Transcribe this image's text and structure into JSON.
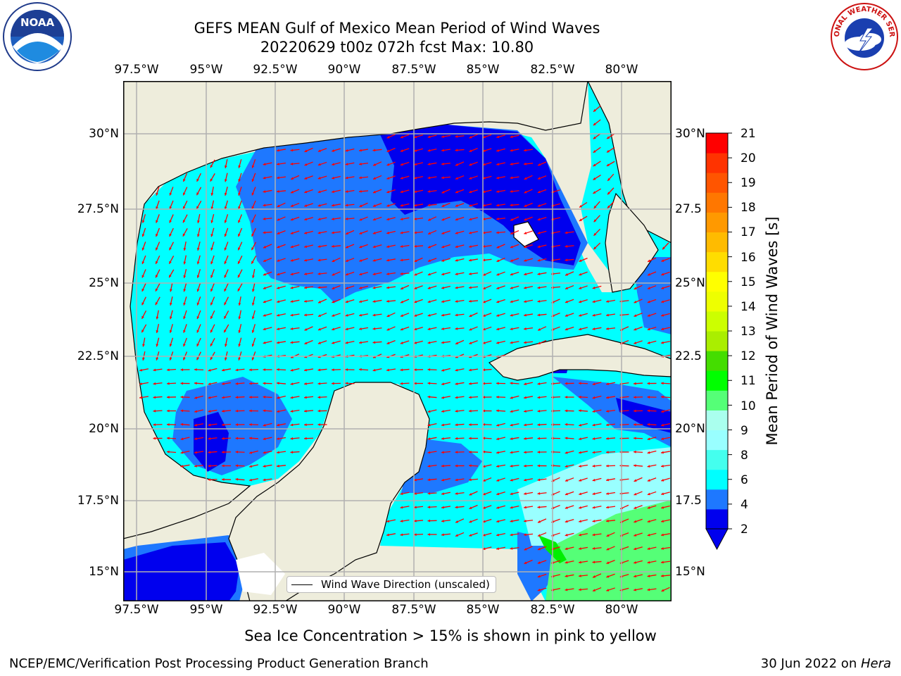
{
  "title": {
    "line1": "GEFS MEAN Gulf of Mexico Mean Period of Wind Waves",
    "line2": "20220629 t00z 072h fcst   Max: 10.80"
  },
  "lon_labels": [
    "97.5°W",
    "95°W",
    "92.5°W",
    "90°W",
    "87.5°W",
    "85°W",
    "82.5°W",
    "80°W"
  ],
  "lat_labels_left": [
    "30°N",
    "27.5°N",
    "25°N",
    "22.5°N",
    "20°N",
    "17.5°N",
    "15°N"
  ],
  "lat_labels_right": [
    "30°N",
    "27.5",
    "25°N",
    "22.5",
    "20°N",
    "17.5",
    "15°N"
  ],
  "colorbar": {
    "title": "Mean Period of Wind Waves [s]",
    "labels": [
      "21",
      "20",
      "19",
      "18",
      "17",
      "16",
      "15",
      "14",
      "13",
      "12",
      "11",
      "10",
      "9",
      "8",
      "6",
      "4",
      "2"
    ],
    "colors": [
      "#0000ee",
      "#1e78ff",
      "#00ffff",
      "#44ffee",
      "#99ffff",
      "#aaffee",
      "#55ff77",
      "#00ff00",
      "#44dd00",
      "#aaee00",
      "#ccff00",
      "#eeff00",
      "#ffff00",
      "#ffdd00",
      "#ffbb00",
      "#ff9900",
      "#ff7700",
      "#ff5500",
      "#ff3300",
      "#ff0000"
    ]
  },
  "legend_label": "Wind Wave Direction (unscaled)",
  "note": "Sea Ice Concentration > 15% is shown in pink to yellow",
  "footer_left": "NCEP/EMC/Verification Post Processing Product Generation Branch",
  "footer_right_prefix": "30 Jun 2022 on ",
  "footer_right_host": "Hera",
  "logos": {
    "left": "NOAA",
    "right_text": "NATIONAL WEATHER SERVICE"
  },
  "colors": {
    "land": "#eeeddc",
    "wave_2_4": "#1e78ff",
    "wave_0_2": "#0000ee",
    "wave_4_6": "#00ffff",
    "wave_8_9": "#99ffff",
    "wave_9_10": "#55ff77",
    "arrow": "#ff0000",
    "grid": "#b0b0b0"
  }
}
